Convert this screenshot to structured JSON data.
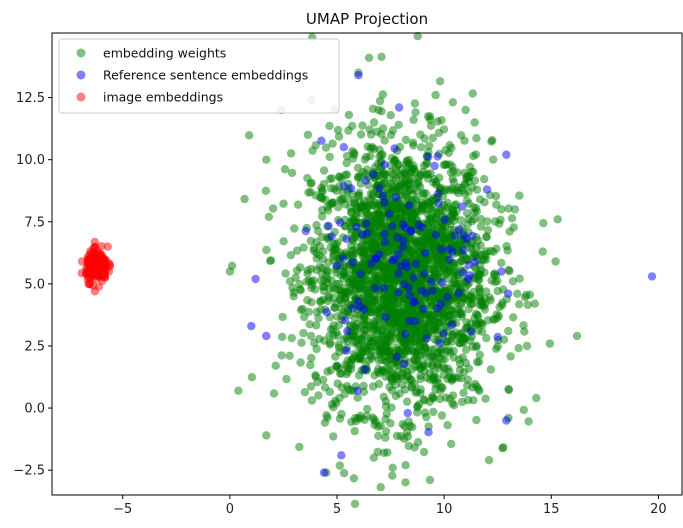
{
  "chart_data": {
    "type": "scatter",
    "title": "UMAP Projection",
    "xlabel": "",
    "ylabel": "",
    "xlim": [
      -8.3,
      21.1
    ],
    "ylim": [
      -3.5,
      15.1
    ],
    "x_ticks": [
      -5,
      0,
      5,
      10,
      15,
      20
    ],
    "y_ticks": [
      -2.5,
      0.0,
      2.5,
      5.0,
      7.5,
      10.0,
      12.5
    ],
    "grid": false,
    "legend_position": "top-left",
    "series": [
      {
        "name": "embedding weights",
        "color": "#008000",
        "alpha": 0.5,
        "distribution": {
          "center": [
            8.0,
            5.3
          ],
          "spread": [
            2.1,
            2.7
          ],
          "count": 2600
        },
        "outliers": [
          [
            0.0,
            5.5
          ],
          [
            0.4,
            0.7
          ],
          [
            1.7,
            -1.1
          ],
          [
            1.7,
            10.0
          ],
          [
            6.5,
            14.1
          ],
          [
            6.0,
            13.5
          ],
          [
            2.4,
            12.0
          ],
          [
            14.3,
            0.4
          ],
          [
            14.6,
            6.3
          ],
          [
            15.3,
            7.6
          ],
          [
            16.2,
            2.9
          ],
          [
            15.2,
            5.9
          ],
          [
            13.3,
            8.0
          ],
          [
            13.0,
            -0.4
          ],
          [
            12.1,
            -2.1
          ],
          [
            4.5,
            -2.6
          ],
          [
            8.2,
            -2.3
          ],
          [
            10.8,
            1.2
          ],
          [
            3.8,
            12.4
          ],
          [
            9.6,
            12.6
          ],
          [
            11.0,
            12.0
          ]
        ]
      },
      {
        "name": "Reference sentence embeddings",
        "color": "#0000ff",
        "alpha": 0.5,
        "distribution": {
          "center": [
            8.1,
            5.9
          ],
          "spread": [
            1.9,
            2.2
          ],
          "count": 120
        },
        "outliers": [
          [
            19.7,
            5.3
          ],
          [
            4.4,
            -2.6
          ],
          [
            5.2,
            -1.9
          ],
          [
            12.9,
            -0.5
          ],
          [
            12.9,
            10.2
          ],
          [
            6.0,
            13.4
          ],
          [
            7.9,
            12.1
          ],
          [
            1.0,
            3.3
          ],
          [
            1.2,
            5.2
          ],
          [
            1.7,
            2.9
          ],
          [
            8.3,
            -0.2
          ],
          [
            12.0,
            8.8
          ]
        ]
      },
      {
        "name": "image embeddings",
        "color": "#ff0000",
        "alpha": 0.5,
        "distribution": {
          "center": [
            -6.2,
            5.7
          ],
          "spread": [
            0.25,
            0.3
          ],
          "count": 220
        },
        "outliers": [
          [
            -6.3,
            4.7
          ],
          [
            -5.7,
            6.5
          ],
          [
            -6.9,
            5.9
          ],
          [
            -5.6,
            5.7
          ],
          [
            -6.6,
            5.0
          ]
        ]
      }
    ]
  }
}
